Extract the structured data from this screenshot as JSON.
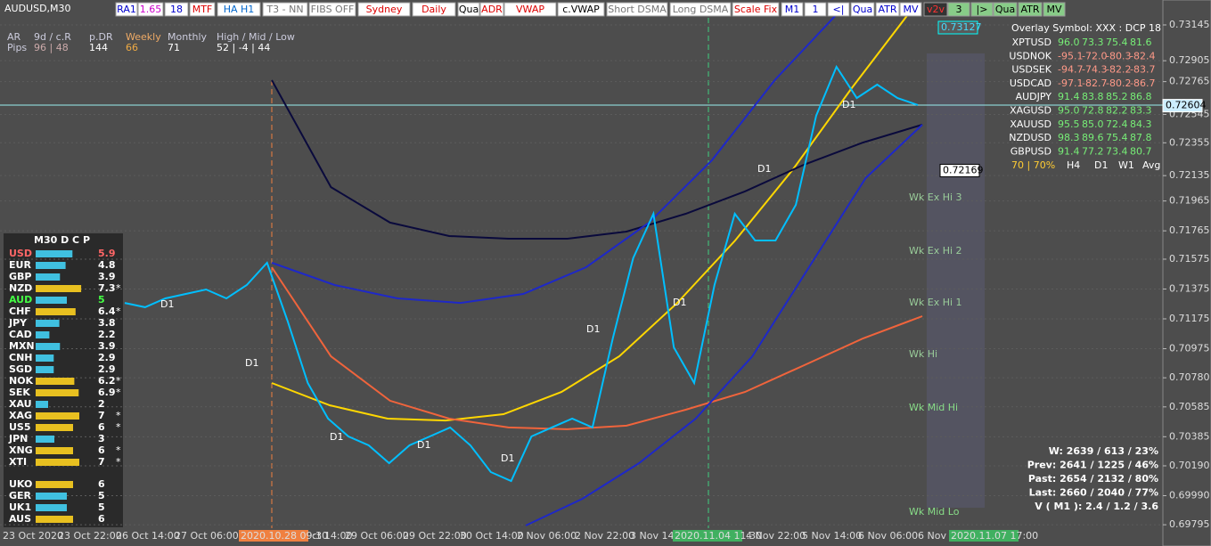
{
  "header": {
    "title": "AUDUSD,M30",
    "buttons": [
      "RA1",
      "1.65",
      "18",
      "MTF",
      "HA H1",
      "T3 - NN",
      "FIBS OFF",
      "Sydney",
      "Daily",
      "Qua",
      "ADR",
      "VWAP",
      "c.VWAP",
      "Short DSMA",
      "Long DSMA",
      "Scale Fix",
      "M1",
      "1",
      "<|",
      "Qua",
      "ATR",
      "MV",
      "v2v",
      "3",
      "|>",
      "Qua",
      "ATR",
      "MV"
    ]
  },
  "info": {
    "headers": [
      "AR",
      "9d / c.R",
      "p.DR",
      "Weekly",
      "Monthly",
      "High / Mid / Low"
    ],
    "row": [
      "Pips",
      "96 | 48",
      "144",
      "66",
      "71",
      "52 | -4 | 44"
    ]
  },
  "strength": {
    "title": "M30  D C P",
    "rows": [
      [
        "USD",
        5.9,
        ""
      ],
      [
        "EUR",
        4.8,
        ""
      ],
      [
        "GBP",
        3.9,
        ""
      ],
      [
        "NZD",
        7.3,
        "*"
      ],
      [
        "AUD",
        5.0,
        ""
      ],
      [
        "CHF",
        6.4,
        "*"
      ],
      [
        "JPY",
        3.8,
        ""
      ],
      [
        "CAD",
        2.2,
        ""
      ],
      [
        "MXN",
        3.9,
        ""
      ],
      [
        "CNH",
        2.9,
        ""
      ],
      [
        "SGD",
        2.9,
        ""
      ],
      [
        "NOK",
        6.2,
        "*"
      ],
      [
        "SEK",
        6.9,
        "*"
      ],
      [
        "XAU",
        2.0,
        ""
      ],
      [
        "XAG",
        7.0,
        "*"
      ],
      [
        "US5",
        6.0,
        "*"
      ],
      [
        "JPN",
        3.0,
        ""
      ],
      [
        "XNG",
        6.0,
        "*"
      ],
      [
        "XTI",
        7.0,
        "*"
      ],
      [
        "UKO",
        6.0,
        ""
      ],
      [
        "GER",
        5.0,
        ""
      ],
      [
        "UK1",
        5.0,
        ""
      ],
      [
        "AUS",
        6.0,
        ""
      ]
    ]
  },
  "overlay": {
    "title": "Overlay Symbol: XXX : DCP 18",
    "rows": [
      [
        "XPTUSD",
        "96.0",
        "73.3",
        "75.4",
        "81.6"
      ],
      [
        "USDNOK",
        "-95.1",
        "-72.0",
        "-80.3",
        "-82.4"
      ],
      [
        "USDSEK",
        "-94.7",
        "-74.3",
        "-82.2",
        "-83.7"
      ],
      [
        "USDCAD",
        "-97.1",
        "-82.7",
        "-80.2",
        "-86.7"
      ],
      [
        "AUDJPY",
        "91.4",
        "83.8",
        "85.2",
        "86.8"
      ],
      [
        "XAGUSD",
        "95.0",
        "72.8",
        "82.2",
        "83.3"
      ],
      [
        "XAUUSD",
        "95.5",
        "85.0",
        "72.4",
        "84.3"
      ],
      [
        "NZDUSD",
        "98.3",
        "89.6",
        "75.4",
        "87.8"
      ],
      [
        "GBPUSD",
        "91.4",
        "77.2",
        "73.4",
        "80.7"
      ]
    ],
    "footer": [
      "70 | 70%",
      "H4",
      "D1",
      "W1",
      "Avg"
    ]
  },
  "zones": [
    "Wk Ex Hi 3",
    "Wk Ex Hi 2",
    "Wk Ex Hi 1",
    "Wk Hi",
    "Wk Mid Hi",
    "Wk Mid Lo"
  ],
  "d1_labels": [
    "D1",
    "D1",
    "D1",
    "D1",
    "D1",
    "D1",
    "D1",
    "D1",
    "D1"
  ],
  "stats": [
    "W: 2639 / 613 / 23%",
    "Prev: 2641 / 1225 / 46%",
    "Past: 2654 / 2132 / 80%",
    "Last: 2660 / 2040 / 77%",
    "V ( M1 ): 2.4 / 1.2 / 3.6"
  ],
  "price_axis": {
    "ylim": [
      0.69772,
      0.73312
    ],
    "ticks": [
      {
        "value": 0.73145,
        "label": "0.73145"
      },
      {
        "value": 0.72905,
        "label": "0.72905"
      },
      {
        "value": 0.72765,
        "label": "0.72765"
      },
      {
        "value": 0.72545,
        "label": "0.72545"
      },
      {
        "value": 0.72355,
        "label": "0.72355"
      },
      {
        "value": 0.72135,
        "label": "0.72135"
      },
      {
        "value": 0.71965,
        "label": "0.71965"
      },
      {
        "value": 0.71765,
        "label": "0.71765"
      },
      {
        "value": 0.71575,
        "label": "0.71575"
      },
      {
        "value": 0.71375,
        "label": "0.71375"
      },
      {
        "value": 0.71175,
        "label": "0.71175"
      },
      {
        "value": 0.70975,
        "label": "0.70975"
      },
      {
        "value": 0.7078,
        "label": "0.70780"
      },
      {
        "value": 0.70585,
        "label": "0.70585"
      },
      {
        "value": 0.70385,
        "label": "0.70385"
      },
      {
        "value": 0.7019,
        "label": "0.70190"
      },
      {
        "value": 0.6999,
        "label": "0.69990"
      },
      {
        "value": 0.69795,
        "label": "0.69795"
      }
    ],
    "markers": [
      {
        "value": 0.73127,
        "label": "0.73127"
      },
      {
        "value": 0.72604,
        "label": "0.72604"
      },
      {
        "value": 0.72169,
        "label": "0.72169"
      }
    ]
  },
  "time_axis": [
    "23 Oct 2020",
    "23 Oct 22:00",
    "26 Oct 14:00",
    "27 Oct 06:00",
    "2020.10.28 09:30",
    "ct 14:00",
    "29 Oct 06:00",
    "29 Oct 22:00",
    "30 Oct 14:00",
    "2 Nov 06:00",
    "2 Nov 22:00",
    "3 Nov 14:00",
    "2020.11.04 11:30",
    "4 Nov 22:00",
    "5 Nov 14:00",
    "6 Nov 06:00",
    "6 Nov 22",
    "2020.11.07 17:00"
  ],
  "price": {
    "color": "#00bfff",
    "values": [
      0.71282,
      0.71253,
      0.71312,
      0.71342,
      0.71372,
      0.71312,
      0.71402,
      0.71551,
      0.71163,
      0.70745,
      0.70506,
      0.70387,
      0.70327,
      0.70208,
      0.70327,
      0.70387,
      0.70447,
      0.70327,
      0.70148,
      0.70088,
      0.70387,
      0.70447,
      0.70506,
      0.70447,
      0.71044,
      0.71581,
      0.71879,
      0.70984,
      0.70745,
      0.71402,
      0.71879,
      0.717,
      0.717,
      0.71939,
      0.72536,
      0.72864,
      0.72655,
      0.72745,
      0.72655,
      0.72608
    ]
  },
  "curves": [
    {
      "color": "#ffd700",
      "values": [
        0.70745,
        0.70596,
        0.70506,
        0.70494,
        0.70536,
        0.70685,
        0.70924,
        0.71282,
        0.717,
        0.72178,
        0.72715,
        0.73223
      ]
    },
    {
      "color": "#f0643c",
      "values": [
        0.71521,
        0.70924,
        0.70626,
        0.70506,
        0.70447,
        0.70435,
        0.70459,
        0.70566,
        0.70685,
        0.70864,
        0.71044,
        0.71193
      ]
    },
    {
      "color": "#0a0a3c",
      "values": [
        0.72775,
        0.72058,
        0.7182,
        0.7173,
        0.71712,
        0.71712,
        0.7176,
        0.71879,
        0.72029,
        0.72208,
        0.72357,
        0.72476
      ]
    },
    {
      "color": "#1e28c8",
      "values": [
        0.71551,
        0.71402,
        0.71312,
        0.71282,
        0.71342,
        0.71521,
        0.7182,
        0.72238,
        0.72775,
        0.73223
      ]
    },
    {
      "color": "#1e28c8",
      "values": [
        0.6979,
        0.69969,
        0.70208,
        0.70506,
        0.70924,
        0.71521,
        0.72118,
        0.72476
      ]
    }
  ]
}
